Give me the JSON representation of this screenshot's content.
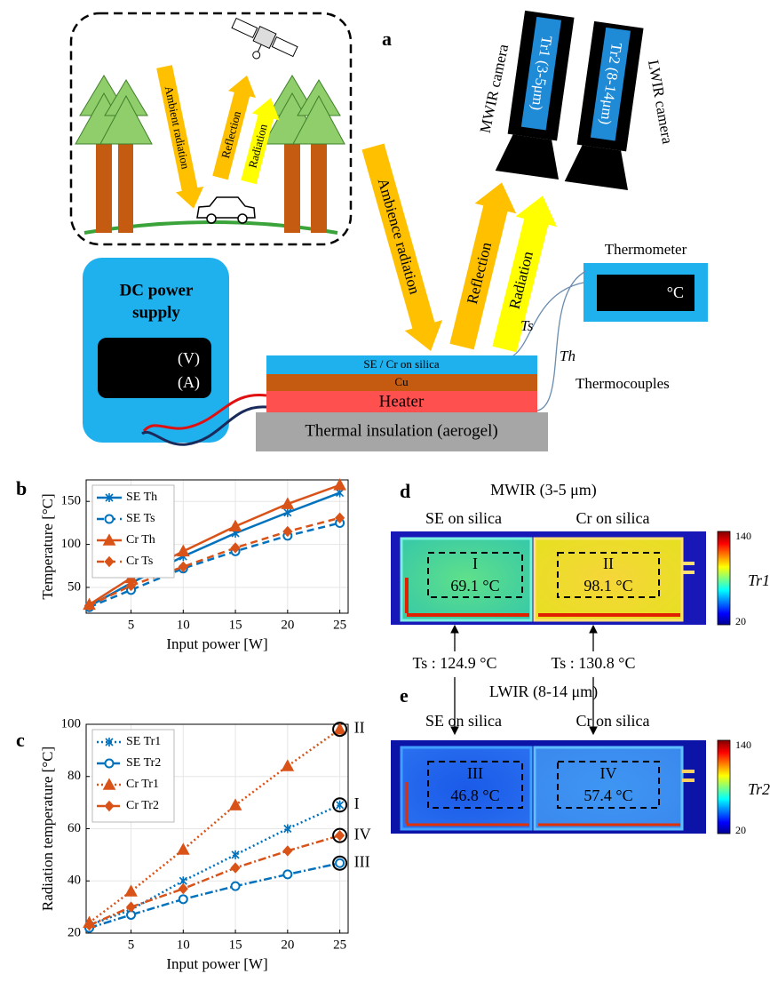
{
  "panel_a": {
    "label": "a",
    "ambient_radiation": "Ambient radiation",
    "reflection_small": "Reflection",
    "radiation_small": "Radiation",
    "ambience_radiation": "Ambience radiation",
    "reflection": "Reflection",
    "radiation": "Radiation",
    "mwir_camera": "MWIR camera",
    "lwir_camera": "LWIR camera",
    "mwir_label": "Tr1 (3-5μm)",
    "lwir_label": "Tr2 (8-14μm)",
    "thermometer": "Thermometer",
    "thermometer_unit": "°C",
    "dc_line1": "DC power",
    "dc_line2": "supply",
    "volts": "(V)",
    "amps": "(A)",
    "layer_top": "SE / Cr on silica",
    "layer_cu": "Cu",
    "layer_heater": "Heater",
    "layer_insulation": "Thermal insulation (aerogel)",
    "ts": "Ts",
    "th": "Th",
    "thermocouples": "Thermocouples"
  },
  "chart_data": [
    {
      "type": "line",
      "panel": "b",
      "xlabel": "Input power [W]",
      "ylabel": "Temperature [°C]",
      "x": [
        1,
        5,
        10,
        15,
        20,
        25
      ],
      "xlim": [
        0.7,
        25.8
      ],
      "xticks": [
        5,
        10,
        15,
        20,
        25
      ],
      "ylim": [
        20,
        175
      ],
      "yticks": [
        50,
        100,
        150
      ],
      "grid": true,
      "legend": "upper left",
      "series": [
        {
          "name": "SE Th",
          "color": "#0072bd",
          "marker": "x",
          "linestyle": "solid",
          "values": [
            28,
            55,
            86,
            113,
            137,
            160
          ]
        },
        {
          "name": "SE Ts",
          "color": "#0072bd",
          "marker": "o",
          "linestyle": "dashed",
          "values": [
            27,
            47,
            72,
            92,
            110,
            124.9
          ]
        },
        {
          "name": "Cr Th",
          "color": "#d95319",
          "marker": "^",
          "linestyle": "solid",
          "values": [
            30,
            61,
            92,
            121,
            147,
            169
          ]
        },
        {
          "name": "Cr Ts",
          "color": "#d95319",
          "marker": "d",
          "linestyle": "dashed",
          "values": [
            29,
            52,
            74,
            96,
            115,
            130.8
          ]
        }
      ]
    },
    {
      "type": "line",
      "panel": "c",
      "xlabel": "Input power [W]",
      "ylabel": "Radiation temperature [°C]",
      "x": [
        1,
        5,
        10,
        15,
        20,
        25
      ],
      "xlim": [
        0.7,
        25.8
      ],
      "xticks": [
        5,
        10,
        15,
        20,
        25
      ],
      "ylim": [
        20,
        100
      ],
      "yticks": [
        20,
        40,
        60,
        80,
        100
      ],
      "grid": true,
      "legend": "upper left",
      "series": [
        {
          "name": "SE Tr1",
          "color": "#0072bd",
          "marker": "x",
          "linestyle": "dotted",
          "values": [
            23,
            29,
            40,
            50,
            60,
            69.1
          ],
          "end_label": "I"
        },
        {
          "name": "SE Tr2",
          "color": "#0072bd",
          "marker": "o",
          "linestyle": "dashdot",
          "values": [
            22,
            27,
            33,
            38,
            42.5,
            46.8
          ],
          "end_label": "III"
        },
        {
          "name": "Cr Tr1",
          "color": "#d95319",
          "marker": "^",
          "linestyle": "dotted",
          "values": [
            24,
            36,
            52,
            69,
            84,
            98.1
          ],
          "end_label": "II"
        },
        {
          "name": "Cr Tr2",
          "color": "#d95319",
          "marker": "d",
          "linestyle": "dashdot",
          "values": [
            23,
            30,
            37,
            45,
            51.5,
            57.4
          ],
          "end_label": "IV"
        }
      ]
    }
  ],
  "panel_d": {
    "label": "d",
    "title": "MWIR (3-5 μm)",
    "left_title": "SE on silica",
    "right_title": "Cr on silica",
    "left_region": "I",
    "left_temp": "69.1 °C",
    "right_region": "II",
    "right_temp": "98.1 °C",
    "cbar_max": 140,
    "cbar_min": 20,
    "cbar_label": "Tr1"
  },
  "ts_row": {
    "left": "Ts :  124.9 °C",
    "right": "Ts :  130.8 °C"
  },
  "panel_e": {
    "label": "e",
    "title": "LWIR (8-14 μm)",
    "left_title": "SE on silica",
    "right_title": "Cr on silica",
    "left_region": "III",
    "left_temp": "46.8 °C",
    "right_region": "IV",
    "right_temp": "57.4 °C",
    "cbar_max": 140,
    "cbar_min": 20,
    "cbar_label": "Tr2"
  }
}
